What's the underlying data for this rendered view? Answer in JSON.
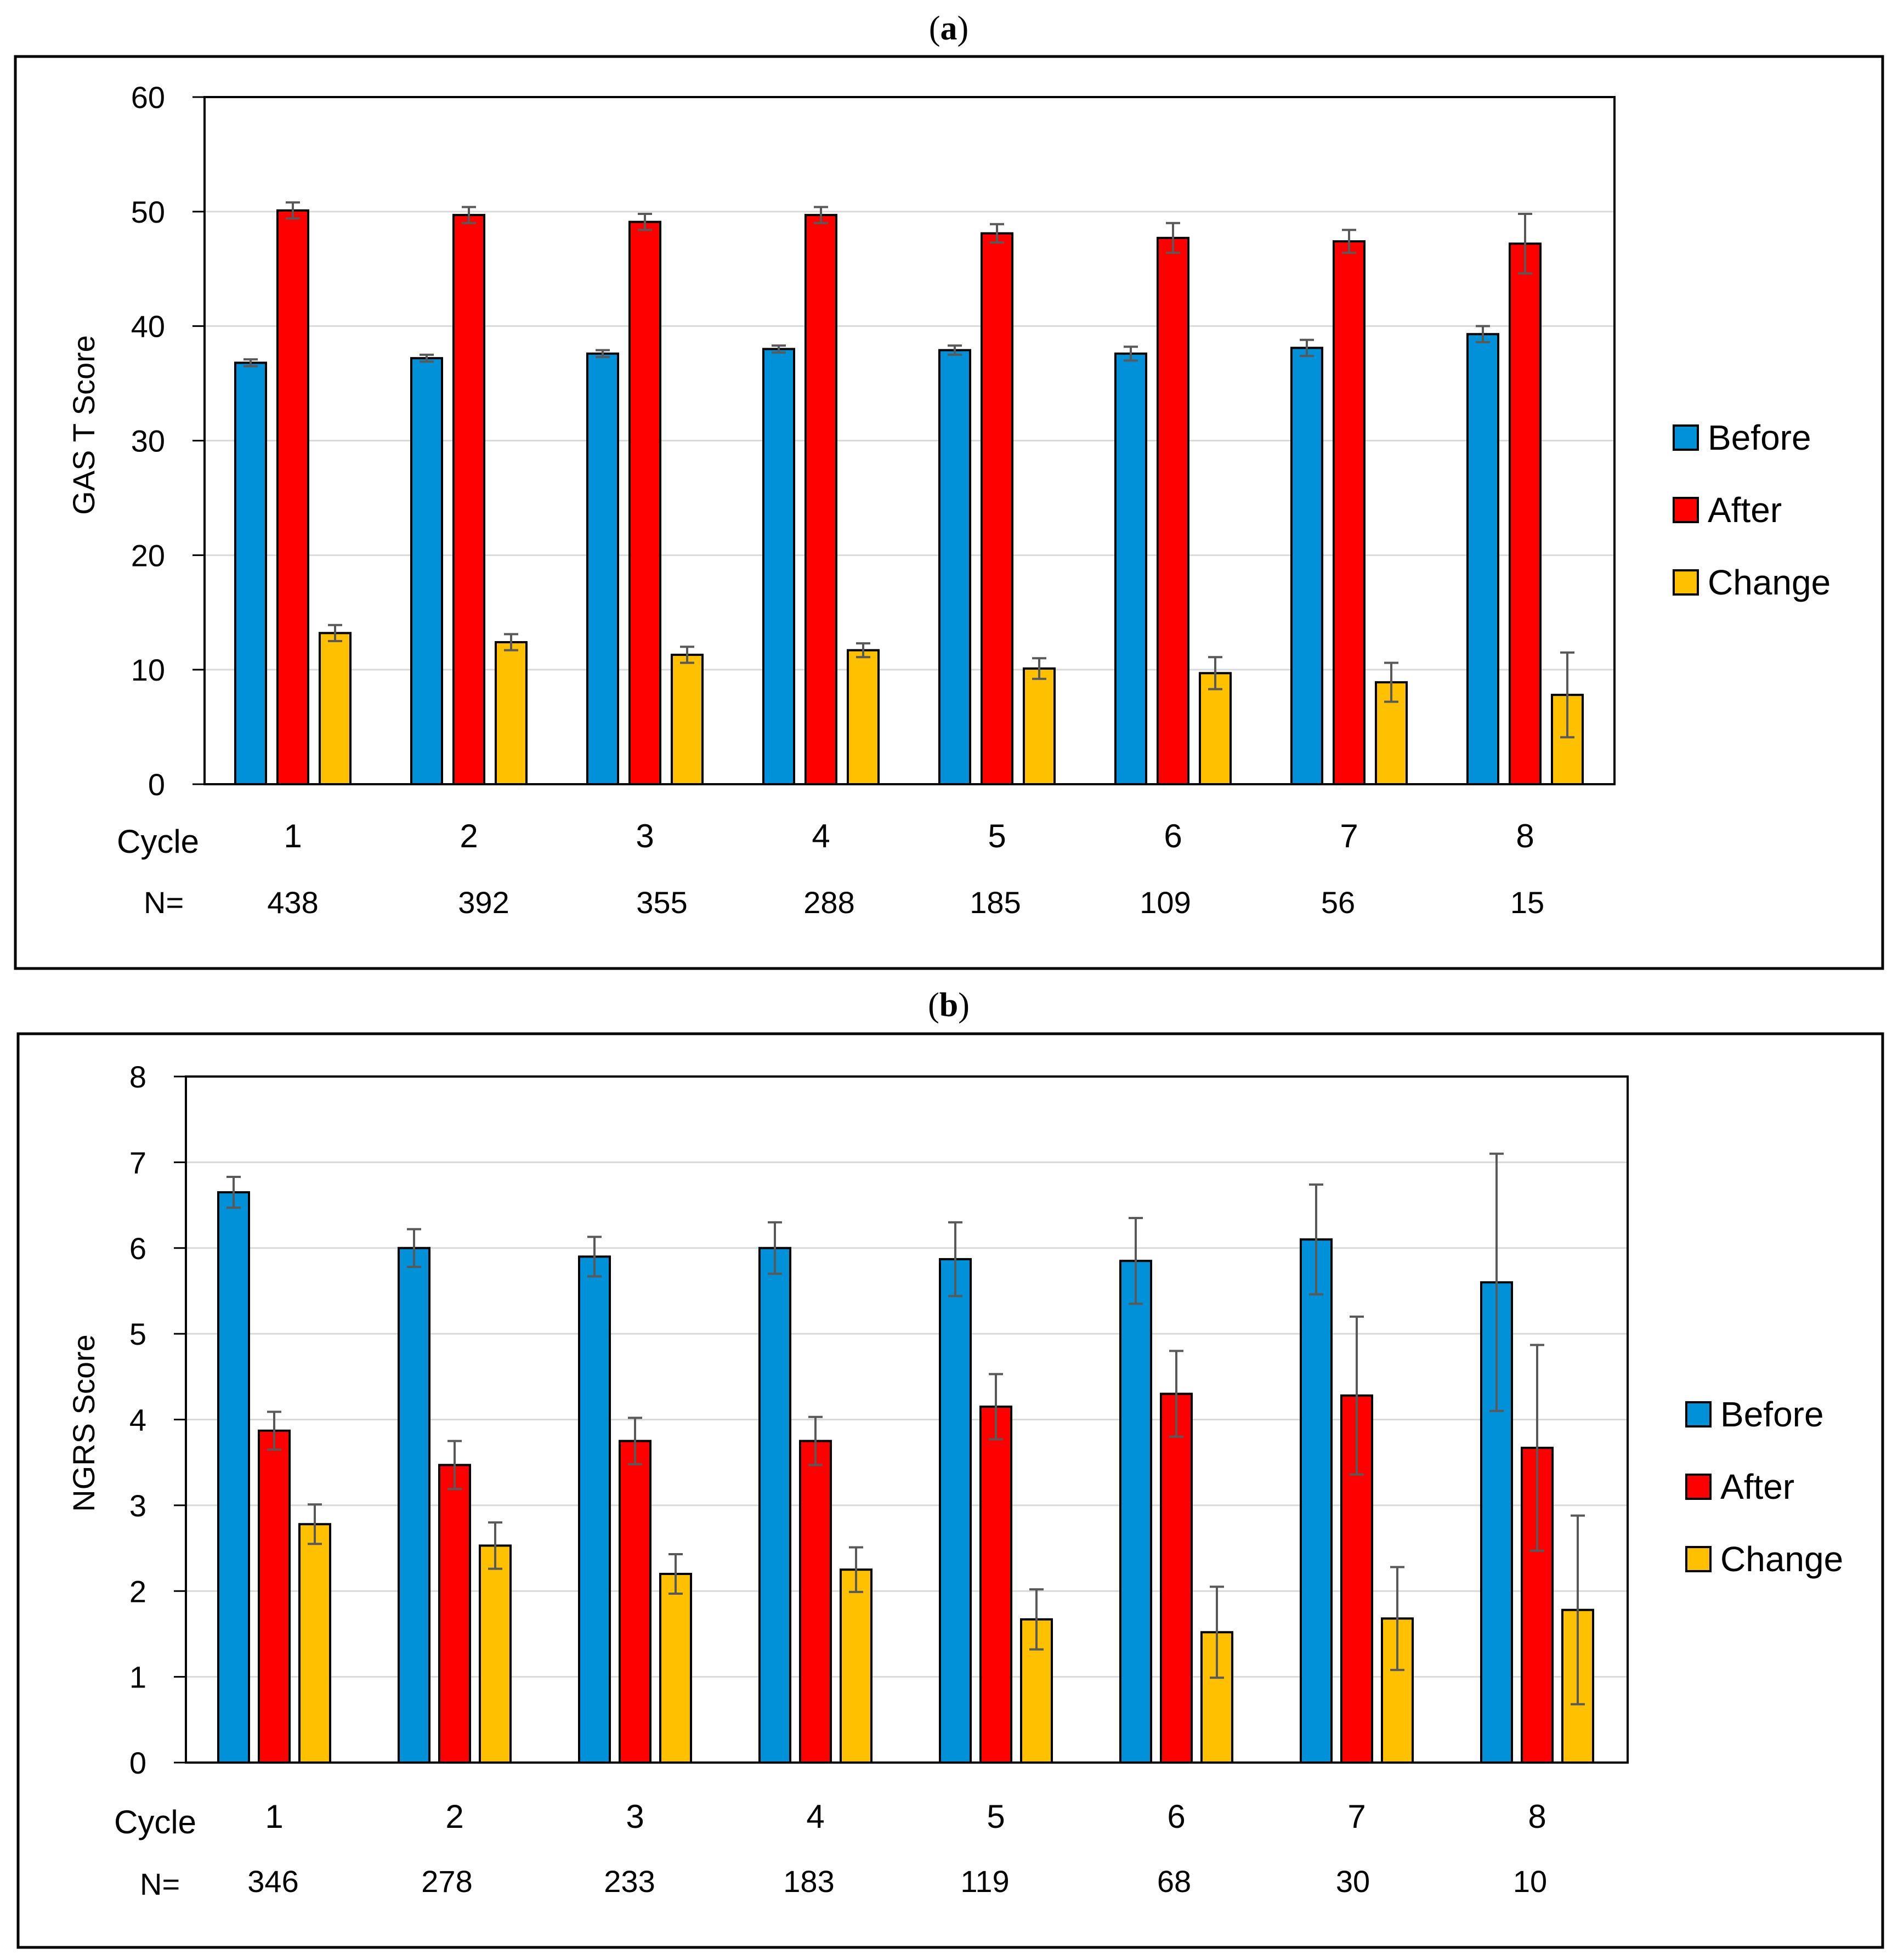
{
  "colors": {
    "before": "#0091D8",
    "after": "#FF0000",
    "change": "#FFC000",
    "grid": "#D9D9D9",
    "error_bar": "#595959"
  },
  "chart_data": [
    {
      "type": "bar",
      "panel_label": "a",
      "ylabel": "GAS T Score",
      "ylim": [
        0,
        60
      ],
      "yticks": [
        0,
        10,
        20,
        30,
        40,
        50,
        60
      ],
      "grid": true,
      "legend_position": "right",
      "categories": [
        "1",
        "2",
        "3",
        "4",
        "5",
        "6",
        "7",
        "8"
      ],
      "x_row_label": "Cycle",
      "n_label": "N=",
      "n_values": [
        "438",
        "392",
        "355",
        "288",
        "185",
        "109",
        "56",
        "15"
      ],
      "series": [
        {
          "name": "Before",
          "values": [
            36.8,
            37.2,
            37.6,
            38.0,
            37.9,
            37.6,
            38.1,
            39.3
          ],
          "errors": [
            0.3,
            0.3,
            0.3,
            0.3,
            0.4,
            0.6,
            0.7,
            0.7
          ]
        },
        {
          "name": "After",
          "values": [
            50.1,
            49.7,
            49.1,
            49.7,
            48.1,
            47.7,
            47.4,
            47.2
          ],
          "errors": [
            0.7,
            0.7,
            0.7,
            0.7,
            0.8,
            1.3,
            1.0,
            2.6
          ]
        },
        {
          "name": "Change",
          "values": [
            13.2,
            12.4,
            11.3,
            11.7,
            10.1,
            9.7,
            8.9,
            7.8
          ],
          "errors": [
            0.7,
            0.7,
            0.7,
            0.6,
            0.9,
            1.4,
            1.7,
            3.7
          ]
        }
      ]
    },
    {
      "type": "bar",
      "panel_label": "b",
      "ylabel": "NGRS Score",
      "ylim": [
        0,
        8
      ],
      "yticks": [
        0,
        1,
        2,
        3,
        4,
        5,
        6,
        7,
        8
      ],
      "grid": true,
      "legend_position": "right",
      "categories": [
        "1",
        "2",
        "3",
        "4",
        "5",
        "6",
        "7",
        "8"
      ],
      "x_row_label": "Cycle",
      "n_label": "N=",
      "n_values": [
        "346",
        "278",
        "233",
        "183",
        "119",
        "68",
        "30",
        "10"
      ],
      "series": [
        {
          "name": "Before",
          "values": [
            6.65,
            6.0,
            5.9,
            6.0,
            5.87,
            5.85,
            6.1,
            5.6
          ],
          "errors": [
            0.18,
            0.22,
            0.23,
            0.3,
            0.43,
            0.5,
            0.64,
            1.5
          ]
        },
        {
          "name": "After",
          "values": [
            3.87,
            3.47,
            3.75,
            3.75,
            4.15,
            4.3,
            4.28,
            3.67
          ],
          "errors": [
            0.22,
            0.28,
            0.27,
            0.28,
            0.38,
            0.5,
            0.92,
            1.2
          ]
        },
        {
          "name": "Change",
          "values": [
            2.78,
            2.53,
            2.2,
            2.25,
            1.67,
            1.52,
            1.68,
            1.78
          ],
          "errors": [
            0.23,
            0.27,
            0.23,
            0.26,
            0.35,
            0.53,
            0.6,
            1.1
          ]
        }
      ]
    }
  ]
}
